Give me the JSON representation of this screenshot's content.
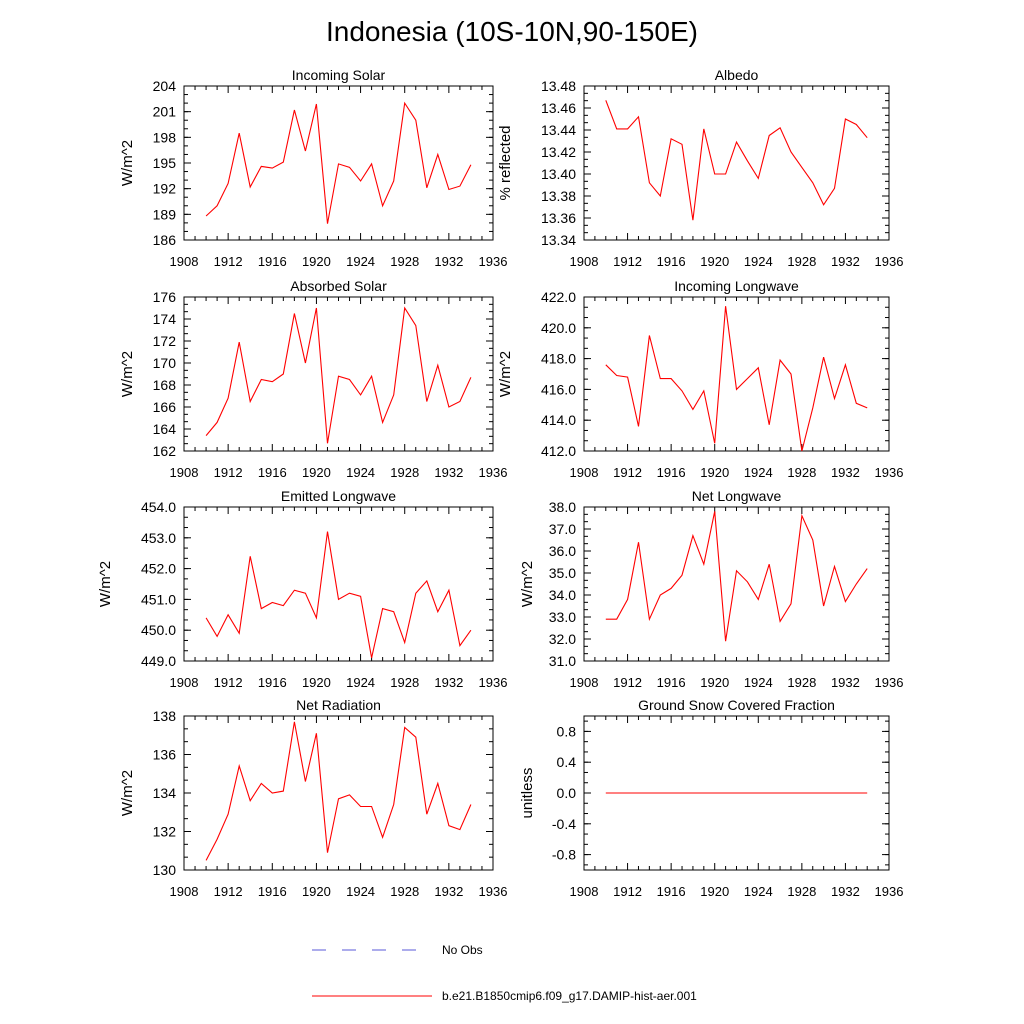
{
  "figure": {
    "title": "Indonesia (10S-10N,90-150E)",
    "legend": [
      {
        "label": "No Obs",
        "color": "#5a5ad8",
        "dash": "dashed"
      },
      {
        "label": "b.e21.B1850cmip6.f09_g17.DAMIP-hist-aer.001",
        "color": "#ff0000",
        "dash": "solid"
      }
    ]
  },
  "chart_data": [
    {
      "type": "line",
      "title": "Incoming Solar",
      "ylabel": "W/m^2",
      "xlim": [
        1908,
        1936
      ],
      "xticks": [
        "1908",
        "1912",
        "1916",
        "1920",
        "1924",
        "1928",
        "1932",
        "1936"
      ],
      "ylim": [
        186,
        204
      ],
      "yticks": [
        "186",
        "189",
        "192",
        "195",
        "198",
        "201",
        "204"
      ],
      "series": [
        {
          "color": "#ff0000",
          "x": [
            1910,
            1911,
            1912,
            1913,
            1914,
            1915,
            1916,
            1917,
            1918,
            1919,
            1920,
            1921,
            1922,
            1923,
            1924,
            1925,
            1926,
            1927,
            1928,
            1929,
            1930,
            1931,
            1932,
            1933,
            1934
          ],
          "y": [
            188.8,
            190.0,
            192.6,
            198.5,
            192.2,
            194.6,
            194.4,
            195.1,
            201.2,
            196.4,
            201.9,
            187.9,
            194.9,
            194.5,
            192.9,
            194.9,
            190.0,
            192.9,
            202.0,
            200.0,
            192.1,
            196.0,
            191.9,
            192.3,
            194.8
          ]
        }
      ]
    },
    {
      "type": "line",
      "title": "Albedo",
      "ylabel": "% reflected",
      "xlim": [
        1908,
        1936
      ],
      "xticks": [
        "1908",
        "1912",
        "1916",
        "1920",
        "1924",
        "1928",
        "1932",
        "1936"
      ],
      "ylim": [
        13.34,
        13.48
      ],
      "yticks": [
        "13.34",
        "13.36",
        "13.38",
        "13.40",
        "13.42",
        "13.44",
        "13.46",
        "13.48"
      ],
      "series": [
        {
          "color": "#ff0000",
          "x": [
            1910,
            1911,
            1912,
            1913,
            1914,
            1915,
            1916,
            1917,
            1918,
            1919,
            1920,
            1921,
            1922,
            1923,
            1924,
            1925,
            1926,
            1927,
            1928,
            1929,
            1930,
            1931,
            1932,
            1933,
            1934
          ],
          "y": [
            13.467,
            13.441,
            13.441,
            13.452,
            13.392,
            13.38,
            13.432,
            13.427,
            13.358,
            13.441,
            13.4,
            13.4,
            13.429,
            13.412,
            13.396,
            13.435,
            13.442,
            13.42,
            13.406,
            13.392,
            13.372,
            13.387,
            13.45,
            13.445,
            13.433
          ]
        }
      ]
    },
    {
      "type": "line",
      "title": "Absorbed Solar",
      "ylabel": "W/m^2",
      "xlim": [
        1908,
        1936
      ],
      "xticks": [
        "1908",
        "1912",
        "1916",
        "1920",
        "1924",
        "1928",
        "1932",
        "1936"
      ],
      "ylim": [
        162,
        176
      ],
      "yticks": [
        "162",
        "164",
        "166",
        "168",
        "170",
        "172",
        "174",
        "176"
      ],
      "series": [
        {
          "color": "#ff0000",
          "x": [
            1910,
            1911,
            1912,
            1913,
            1914,
            1915,
            1916,
            1917,
            1918,
            1919,
            1920,
            1921,
            1922,
            1923,
            1924,
            1925,
            1926,
            1927,
            1928,
            1929,
            1930,
            1931,
            1932,
            1933,
            1934
          ],
          "y": [
            163.4,
            164.6,
            166.8,
            171.9,
            166.5,
            168.5,
            168.3,
            169.0,
            174.5,
            170.0,
            175.0,
            162.7,
            168.8,
            168.5,
            167.1,
            168.8,
            164.6,
            167.1,
            175.0,
            173.4,
            166.5,
            169.8,
            166.0,
            166.5,
            168.7
          ]
        }
      ]
    },
    {
      "type": "line",
      "title": "Incoming Longwave",
      "ylabel": "W/m^2",
      "xlim": [
        1908,
        1936
      ],
      "xticks": [
        "1908",
        "1912",
        "1916",
        "1920",
        "1924",
        "1928",
        "1932",
        "1936"
      ],
      "ylim": [
        412.0,
        422.0
      ],
      "yticks": [
        "412.0",
        "414.0",
        "416.0",
        "418.0",
        "420.0",
        "422.0"
      ],
      "series": [
        {
          "color": "#ff0000",
          "x": [
            1910,
            1911,
            1912,
            1913,
            1914,
            1915,
            1916,
            1917,
            1918,
            1919,
            1920,
            1921,
            1922,
            1923,
            1924,
            1925,
            1926,
            1927,
            1928,
            1929,
            1930,
            1931,
            1932,
            1933,
            1934
          ],
          "y": [
            417.6,
            416.9,
            416.8,
            413.6,
            419.5,
            416.7,
            416.7,
            415.9,
            414.7,
            415.9,
            412.5,
            421.4,
            416.0,
            416.7,
            417.4,
            413.7,
            417.9,
            417.0,
            412.0,
            414.8,
            418.1,
            415.4,
            417.6,
            415.1,
            414.8
          ]
        }
      ]
    },
    {
      "type": "line",
      "title": "Emitted Longwave",
      "ylabel": "W/m^2",
      "xlim": [
        1908,
        1936
      ],
      "xticks": [
        "1908",
        "1912",
        "1916",
        "1920",
        "1924",
        "1928",
        "1932",
        "1936"
      ],
      "ylim": [
        449.0,
        454.0
      ],
      "yticks": [
        "449.0",
        "450.0",
        "451.0",
        "452.0",
        "453.0",
        "454.0"
      ],
      "series": [
        {
          "color": "#ff0000",
          "x": [
            1910,
            1911,
            1912,
            1913,
            1914,
            1915,
            1916,
            1917,
            1918,
            1919,
            1920,
            1921,
            1922,
            1923,
            1924,
            1925,
            1926,
            1927,
            1928,
            1929,
            1930,
            1931,
            1932,
            1933,
            1934
          ],
          "y": [
            450.4,
            449.8,
            450.5,
            449.9,
            452.4,
            450.7,
            450.9,
            450.8,
            451.3,
            451.2,
            450.4,
            453.2,
            451.0,
            451.2,
            451.1,
            449.1,
            450.7,
            450.6,
            449.6,
            451.2,
            451.6,
            450.6,
            451.3,
            449.5,
            450.0
          ]
        }
      ]
    },
    {
      "type": "line",
      "title": "Net Longwave",
      "ylabel": "W/m^2",
      "xlim": [
        1908,
        1936
      ],
      "xticks": [
        "1908",
        "1912",
        "1916",
        "1920",
        "1924",
        "1928",
        "1932",
        "1936"
      ],
      "ylim": [
        31.0,
        38.0
      ],
      "yticks": [
        "31.0",
        "32.0",
        "33.0",
        "34.0",
        "35.0",
        "36.0",
        "37.0",
        "38.0"
      ],
      "series": [
        {
          "color": "#ff0000",
          "x": [
            1910,
            1911,
            1912,
            1913,
            1914,
            1915,
            1916,
            1917,
            1918,
            1919,
            1920,
            1921,
            1922,
            1923,
            1924,
            1925,
            1926,
            1927,
            1928,
            1929,
            1930,
            1931,
            1932,
            1933,
            1934
          ],
          "y": [
            32.9,
            32.9,
            33.8,
            36.4,
            32.9,
            34.0,
            34.3,
            34.9,
            36.7,
            35.4,
            37.8,
            31.9,
            35.1,
            34.6,
            33.8,
            35.4,
            32.8,
            33.6,
            37.6,
            36.5,
            33.5,
            35.3,
            33.7,
            34.5,
            35.2
          ]
        }
      ]
    },
    {
      "type": "line",
      "title": "Net Radiation",
      "ylabel": "W/m^2",
      "xlim": [
        1908,
        1936
      ],
      "xticks": [
        "1908",
        "1912",
        "1916",
        "1920",
        "1924",
        "1928",
        "1932",
        "1936"
      ],
      "ylim": [
        130,
        138
      ],
      "yticks": [
        "130",
        "132",
        "134",
        "136",
        "138"
      ],
      "series": [
        {
          "color": "#ff0000",
          "x": [
            1910,
            1911,
            1912,
            1913,
            1914,
            1915,
            1916,
            1917,
            1918,
            1919,
            1920,
            1921,
            1922,
            1923,
            1924,
            1925,
            1926,
            1927,
            1928,
            1929,
            1930,
            1931,
            1932,
            1933,
            1934
          ],
          "y": [
            130.5,
            131.6,
            132.9,
            135.4,
            133.6,
            134.5,
            134.0,
            134.1,
            137.7,
            134.6,
            137.1,
            130.9,
            133.7,
            133.9,
            133.3,
            133.3,
            131.7,
            133.4,
            137.4,
            136.9,
            132.9,
            134.5,
            132.3,
            132.1,
            133.4
          ]
        }
      ]
    },
    {
      "type": "line",
      "title": "Ground Snow Covered Fraction",
      "ylabel": "unitless",
      "xlim": [
        1908,
        1936
      ],
      "xticks": [
        "1908",
        "1912",
        "1916",
        "1920",
        "1924",
        "1928",
        "1932",
        "1936"
      ],
      "ylim": [
        -1.0,
        1.0
      ],
      "yticks": [
        "-0.8",
        "-0.4",
        "0.0",
        "0.4",
        "0.8"
      ],
      "series": [
        {
          "color": "#ff0000",
          "x": [
            1910,
            1911,
            1912,
            1913,
            1914,
            1915,
            1916,
            1917,
            1918,
            1919,
            1920,
            1921,
            1922,
            1923,
            1924,
            1925,
            1926,
            1927,
            1928,
            1929,
            1930,
            1931,
            1932,
            1933,
            1934
          ],
          "y": [
            0,
            0,
            0,
            0,
            0,
            0,
            0,
            0,
            0,
            0,
            0,
            0,
            0,
            0,
            0,
            0,
            0,
            0,
            0,
            0,
            0,
            0,
            0,
            0,
            0
          ]
        }
      ]
    }
  ]
}
